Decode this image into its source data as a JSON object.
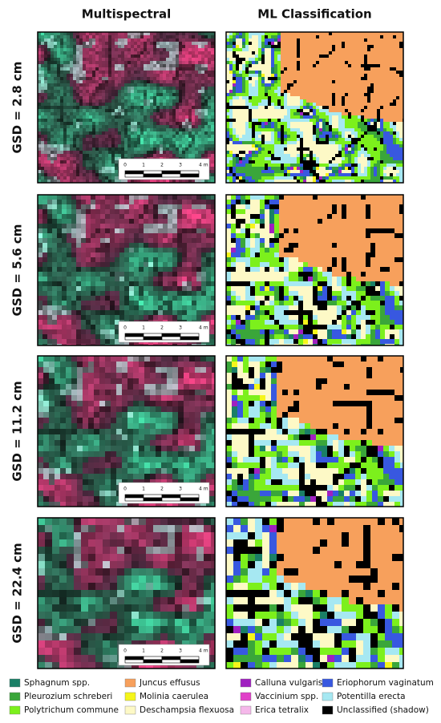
{
  "columns": [
    "Multispectral",
    "ML Classification"
  ],
  "rows": [
    {
      "label": "GSD = 2.8 cm"
    },
    {
      "label": "GSD = 5.6 cm"
    },
    {
      "label": "GSD = 11.2 cm"
    },
    {
      "label": "GSD = 22.4 cm"
    }
  ],
  "scale_bar": {
    "labels": [
      "0",
      "1",
      "2",
      "3",
      "4 m"
    ]
  },
  "legend": [
    {
      "name": "Sphagnum spp.",
      "color": "#1a7f66"
    },
    {
      "name": "Pleurozium schreberi",
      "color": "#3aa63a"
    },
    {
      "name": "Polytrichum commune",
      "color": "#7cf01c"
    },
    {
      "name": "Juncus effusus",
      "color": "#f7a05c"
    },
    {
      "name": "Molinia caerulea",
      "color": "#f5f51a"
    },
    {
      "name": "Deschampsia flexuosa",
      "color": "#fdf9c6"
    },
    {
      "name": "Calluna vulgaris",
      "color": "#a020c0"
    },
    {
      "name": "Vaccinium spp.",
      "color": "#e040c8"
    },
    {
      "name": "Erica tetralix",
      "color": "#f5b8ea"
    },
    {
      "name": "Eriophorum vaginatum",
      "color": "#3858e0"
    },
    {
      "name": "Potentilla erecta",
      "color": "#a6e8f2"
    },
    {
      "name": "Unclassified (shadow)",
      "color": "#000000"
    }
  ]
}
